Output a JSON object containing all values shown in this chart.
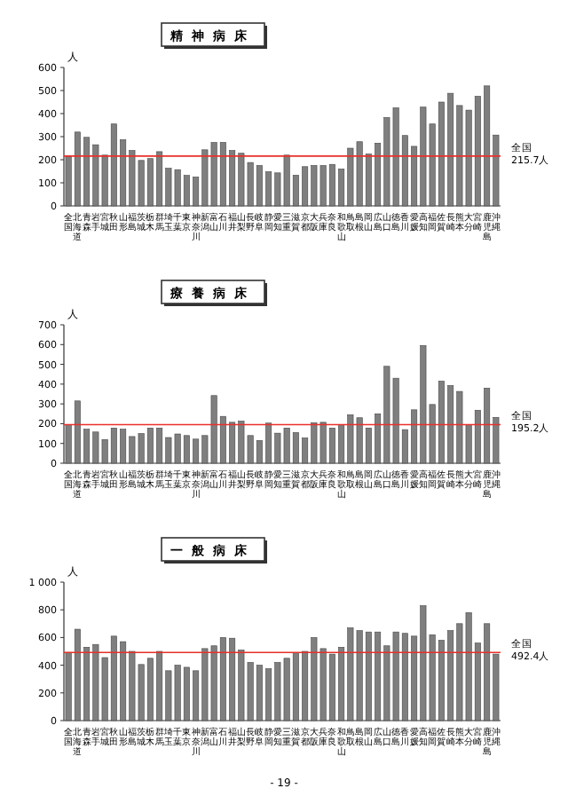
{
  "chart_data": [
    {
      "type": "bar",
      "title": "精神病床",
      "ylabel": "人",
      "color": "#7f7f7f",
      "categories": [
        "全国",
        "北海道",
        "青森",
        "岩手",
        "宮城",
        "秋田",
        "山形",
        "福島",
        "茨城",
        "栃木",
        "群馬",
        "埼玉",
        "千葉",
        "東京",
        "神奈川",
        "新潟",
        "富山",
        "石川",
        "福井",
        "山梨",
        "長野",
        "岐阜",
        "静岡",
        "愛知",
        "三重",
        "滋賀",
        "京都",
        "大阪",
        "兵庫",
        "奈良",
        "和歌山",
        "鳥取",
        "島根",
        "岡山",
        "広島",
        "山口",
        "徳島",
        "香川",
        "愛媛",
        "高知",
        "福岡",
        "佐賀",
        "長崎",
        "熊本",
        "大分",
        "宮崎",
        "鹿児島",
        "沖縄"
      ],
      "values": [
        215.7,
        320,
        297,
        265,
        220,
        355,
        287,
        240,
        197,
        205,
        235,
        163,
        157,
        132,
        125,
        243,
        275,
        275,
        240,
        228,
        188,
        175,
        148,
        143,
        220,
        133,
        170,
        175,
        175,
        180,
        160,
        250,
        278,
        225,
        272,
        383,
        425,
        305,
        258,
        428,
        355,
        450,
        488,
        435,
        415,
        475,
        520,
        307
      ],
      "ylim": [
        0,
        600
      ],
      "yticks": [
        0,
        100,
        200,
        300,
        400,
        500,
        600
      ],
      "ref_lines": [
        {
          "axis": "y",
          "value": 215.7,
          "label": "全国 215.7人",
          "color": "#e8302a"
        }
      ]
    },
    {
      "type": "bar",
      "title": "療養病床",
      "ylabel": "人",
      "color": "#7f7f7f",
      "categories": [
        "全国",
        "北海道",
        "青森",
        "岩手",
        "宮城",
        "秋田",
        "山形",
        "福島",
        "茨城",
        "栃木",
        "群馬",
        "埼玉",
        "千葉",
        "東京",
        "神奈川",
        "新潟",
        "富山",
        "石川",
        "福井",
        "山梨",
        "長野",
        "岐阜",
        "静岡",
        "愛知",
        "三重",
        "滋賀",
        "京都",
        "大阪",
        "兵庫",
        "奈良",
        "和歌山",
        "鳥取",
        "島根",
        "岡山",
        "広島",
        "山口",
        "徳島",
        "香川",
        "愛媛",
        "高知",
        "福岡",
        "佐賀",
        "長崎",
        "熊本",
        "大分",
        "宮崎",
        "鹿児島",
        "沖縄"
      ],
      "values": [
        195.2,
        315,
        172,
        158,
        120,
        178,
        172,
        135,
        150,
        178,
        178,
        130,
        148,
        140,
        122,
        140,
        342,
        237,
        207,
        213,
        140,
        115,
        203,
        152,
        178,
        155,
        128,
        205,
        207,
        178,
        195,
        245,
        230,
        178,
        250,
        490,
        430,
        170,
        270,
        595,
        297,
        415,
        393,
        363,
        190,
        268,
        380,
        232
      ],
      "ylim": [
        0,
        700
      ],
      "yticks": [
        0,
        100,
        200,
        300,
        400,
        500,
        600,
        700
      ],
      "ref_lines": [
        {
          "axis": "y",
          "value": 195.2,
          "label": "全国 195.2人",
          "color": "#e8302a"
        }
      ]
    },
    {
      "type": "bar",
      "title": "一般病床",
      "ylabel": "人",
      "color": "#7f7f7f",
      "categories": [
        "全国",
        "北海道",
        "青森",
        "岩手",
        "宮城",
        "秋田",
        "山形",
        "福島",
        "茨城",
        "栃木",
        "群馬",
        "埼玉",
        "千葉",
        "東京",
        "神奈川",
        "新潟",
        "富山",
        "石川",
        "福井",
        "山梨",
        "長野",
        "岐阜",
        "静岡",
        "愛知",
        "三重",
        "滋賀",
        "京都",
        "大阪",
        "兵庫",
        "奈良",
        "和歌山",
        "鳥取",
        "島根",
        "岡山",
        "広島",
        "山口",
        "徳島",
        "香川",
        "愛媛",
        "高知",
        "福岡",
        "佐賀",
        "長崎",
        "熊本",
        "大分",
        "宮崎",
        "鹿児島",
        "沖縄"
      ],
      "values": [
        492.4,
        660,
        530,
        550,
        455,
        610,
        570,
        500,
        405,
        450,
        500,
        360,
        400,
        385,
        360,
        520,
        540,
        600,
        595,
        510,
        420,
        400,
        375,
        420,
        450,
        490,
        500,
        600,
        520,
        480,
        530,
        670,
        650,
        640,
        640,
        540,
        640,
        630,
        610,
        830,
        620,
        580,
        650,
        700,
        780,
        560,
        700,
        480
      ],
      "ylim": [
        0,
        1000
      ],
      "yticks": [
        0,
        200,
        400,
        600,
        800,
        {
          "value": 1000,
          "label": "1 000"
        }
      ],
      "ref_lines": [
        {
          "axis": "y",
          "value": 492.4,
          "label": "全国 492.4人",
          "color": "#e8302a"
        }
      ],
      "annotations": [
        "- 19 -"
      ]
    }
  ]
}
